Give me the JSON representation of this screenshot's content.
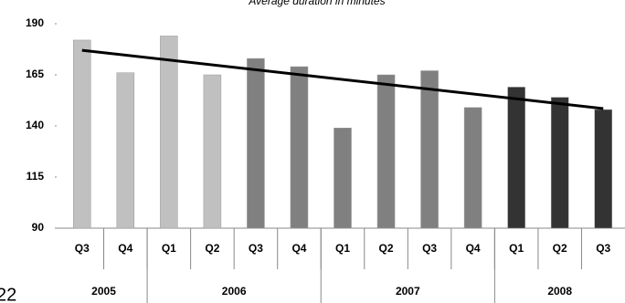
{
  "page_number": "22",
  "chart_data": {
    "type": "bar",
    "title": "Average duration in minutes",
    "categories": [
      "Q3",
      "Q4",
      "Q1",
      "Q2",
      "Q3",
      "Q4",
      "Q1",
      "Q2",
      "Q3",
      "Q4",
      "Q1",
      "Q2",
      "Q3"
    ],
    "values": [
      182,
      166,
      184,
      165,
      173,
      169,
      139,
      165,
      167,
      149,
      159,
      154,
      148
    ],
    "colors": [
      "#c0c0c0",
      "#c0c0c0",
      "#c0c0c0",
      "#c0c0c0",
      "#808080",
      "#808080",
      "#808080",
      "#808080",
      "#808080",
      "#808080",
      "#333333",
      "#333333",
      "#333333"
    ],
    "groups": [
      {
        "label": "2005",
        "span": 2
      },
      {
        "label": "2006",
        "span": 4
      },
      {
        "label": "2007",
        "span": 4
      },
      {
        "label": "2008",
        "span": 3
      }
    ],
    "trendline": {
      "color": "#000000",
      "values": [
        177,
        148.5
      ]
    },
    "ylim": [
      90,
      190
    ],
    "yticks": [
      90,
      115,
      140,
      165,
      190
    ],
    "grid": false
  }
}
